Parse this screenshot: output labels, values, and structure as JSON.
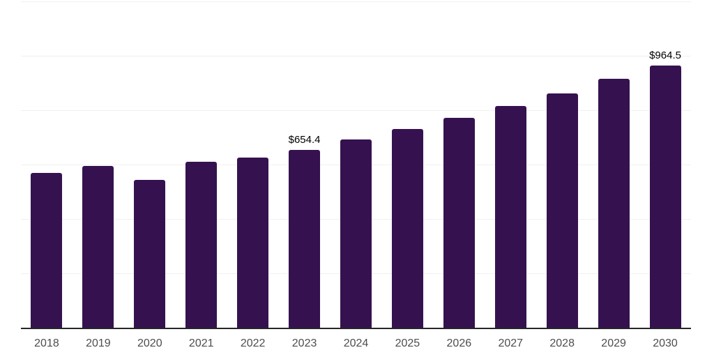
{
  "chart": {
    "background": "#ffffff",
    "bar_color": "#35124F",
    "grid_color": "#f0f0f0",
    "axis_line_color": "#262626",
    "tick_label_color": "#4d4d4d",
    "data_label_color": "#000000"
  },
  "chart_data": {
    "type": "bar",
    "title": "",
    "xlabel": "",
    "ylabel": "",
    "categories": [
      "2018",
      "2019",
      "2020",
      "2021",
      "2022",
      "2023",
      "2024",
      "2025",
      "2026",
      "2027",
      "2028",
      "2029",
      "2030"
    ],
    "values": [
      569,
      595,
      544,
      610,
      626,
      654.4,
      692,
      731,
      772,
      815,
      862,
      915,
      964.5
    ],
    "data_labels": {
      "2023": "$654.4",
      "2030": "$964.5"
    },
    "ylim": [
      0,
      1200
    ],
    "grid_step": 200,
    "grid": true,
    "legend": false,
    "y_axis_labels_visible": false,
    "value_prefix": "$"
  }
}
